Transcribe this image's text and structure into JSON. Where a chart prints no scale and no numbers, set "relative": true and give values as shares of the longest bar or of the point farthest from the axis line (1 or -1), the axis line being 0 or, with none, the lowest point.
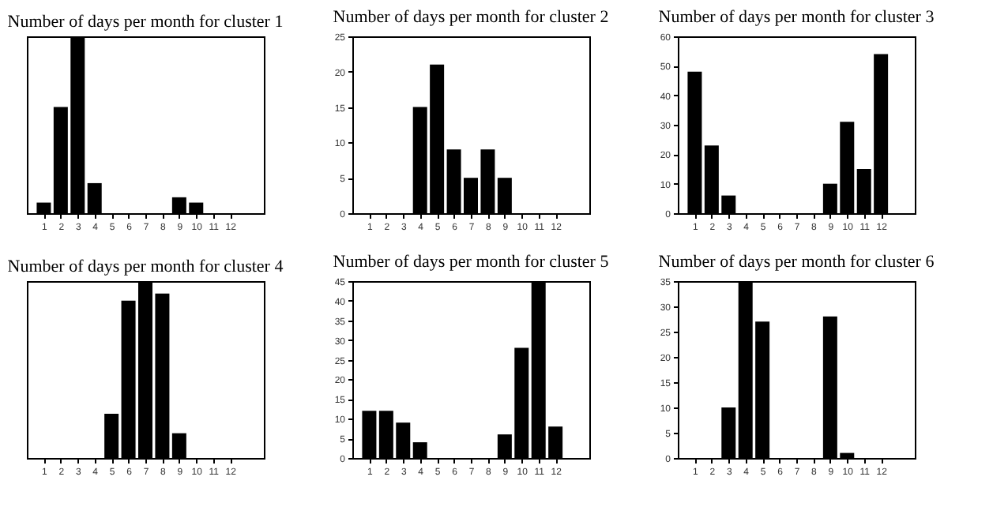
{
  "chart_data": [
    {
      "type": "bar",
      "title": "Number of days per month for cluster 1",
      "relative": true,
      "x": [
        1,
        2,
        3,
        4,
        5,
        6,
        7,
        8,
        9,
        10,
        11,
        12
      ],
      "xlim": [
        0,
        14
      ],
      "xticks": [
        1,
        2,
        3,
        4,
        5,
        6,
        7,
        8,
        9,
        10,
        11,
        12
      ],
      "values": [
        0.06,
        0.6,
        1,
        0.17,
        0,
        0,
        0,
        0,
        0.09,
        0.06,
        0,
        0
      ],
      "color": "#000000",
      "tick_labels": "x",
      "grid": false
    },
    {
      "type": "bar",
      "title": "Number of days per month for cluster 2",
      "x": [
        1,
        2,
        3,
        4,
        5,
        6,
        7,
        8,
        9,
        10,
        11,
        12
      ],
      "xlim": [
        0,
        14
      ],
      "xticks": [
        1,
        2,
        3,
        4,
        5,
        6,
        7,
        8,
        9,
        10,
        11,
        12
      ],
      "values": [
        0,
        0,
        0,
        15,
        21,
        9,
        5,
        9,
        5,
        0,
        0,
        0
      ],
      "color": "#000000",
      "ylim": [
        0,
        25
      ],
      "yticks": [
        0,
        5,
        10,
        15,
        20,
        25
      ],
      "grid": false
    },
    {
      "type": "bar",
      "title": "Number of days per month for cluster 3",
      "x": [
        1,
        2,
        3,
        4,
        5,
        6,
        7,
        8,
        9,
        10,
        11,
        12
      ],
      "xlim": [
        0,
        14
      ],
      "xticks": [
        1,
        2,
        3,
        4,
        5,
        6,
        7,
        8,
        9,
        10,
        11,
        12
      ],
      "values": [
        48,
        23,
        6,
        0,
        0,
        0,
        0,
        0,
        10,
        31,
        15,
        54
      ],
      "color": "#000000",
      "ylim": [
        0,
        60
      ],
      "yticks": [
        0,
        10,
        20,
        30,
        40,
        50,
        60
      ],
      "grid": false
    },
    {
      "type": "bar",
      "title": "Number of days per month for cluster 4",
      "relative": true,
      "x": [
        1,
        2,
        3,
        4,
        5,
        6,
        7,
        8,
        9,
        10,
        11,
        12
      ],
      "xlim": [
        0,
        14
      ],
      "xticks": [
        1,
        2,
        3,
        4,
        5,
        6,
        7,
        8,
        9,
        10,
        11,
        12
      ],
      "values": [
        0,
        0,
        0,
        0,
        0.25,
        0.89,
        1,
        0.93,
        0.14,
        0,
        0,
        0
      ],
      "color": "#000000",
      "tick_labels": "x",
      "grid": false
    },
    {
      "type": "bar",
      "title": "Number of days per month for cluster 5",
      "x": [
        1,
        2,
        3,
        4,
        5,
        6,
        7,
        8,
        9,
        10,
        11,
        12
      ],
      "xlim": [
        0,
        14
      ],
      "xticks": [
        1,
        2,
        3,
        4,
        5,
        6,
        7,
        8,
        9,
        10,
        11,
        12
      ],
      "values": [
        12,
        12,
        9,
        4,
        0,
        0,
        0,
        0,
        6,
        28,
        45,
        8
      ],
      "color": "#000000",
      "ylim": [
        0,
        45
      ],
      "yticks": [
        0,
        5,
        10,
        15,
        20,
        25,
        30,
        35,
        40,
        45
      ],
      "grid": false
    },
    {
      "type": "bar",
      "title": "Number of days per month for cluster 6",
      "x": [
        1,
        2,
        3,
        4,
        5,
        6,
        7,
        8,
        9,
        10,
        11,
        12
      ],
      "xlim": [
        0,
        14
      ],
      "xticks": [
        1,
        2,
        3,
        4,
        5,
        6,
        7,
        8,
        9,
        10,
        11,
        12
      ],
      "values": [
        0,
        0,
        10,
        35,
        27,
        0,
        0,
        0,
        28,
        1,
        0,
        0
      ],
      "color": "#000000",
      "ylim": [
        0,
        35
      ],
      "yticks": [
        0,
        5,
        10,
        15,
        20,
        25,
        30,
        35
      ],
      "grid": false
    }
  ]
}
